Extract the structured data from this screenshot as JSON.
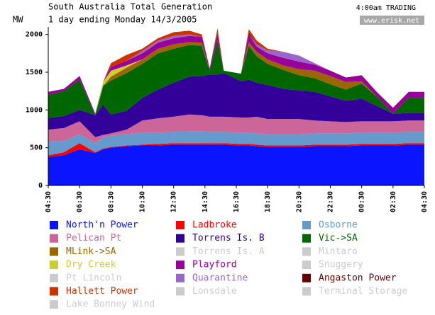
{
  "chart_data": {
    "type": "stacked_area",
    "title": "South Australia Total Generation",
    "subtitle": "1 day ending Monday 14/3/2005",
    "y_label": "MW",
    "status": "4:00am TRADING",
    "source": "www.erisk.net",
    "x": [
      0,
      1,
      2,
      3,
      3.5,
      4,
      5,
      6,
      7,
      8,
      9,
      9.8,
      10.3,
      10.8,
      11.2,
      12.3,
      12.8,
      13.3,
      14,
      15,
      16,
      17,
      18,
      19,
      20,
      21,
      22,
      23,
      24
    ],
    "xlim": [
      0,
      24
    ],
    "xticks": [
      {
        "value": 0,
        "label": "04:30"
      },
      {
        "value": 2,
        "label": "06:30"
      },
      {
        "value": 4,
        "label": "08:30"
      },
      {
        "value": 6,
        "label": "10:30"
      },
      {
        "value": 8,
        "label": "12:30"
      },
      {
        "value": 10,
        "label": "14:30"
      },
      {
        "value": 12,
        "label": "16:30"
      },
      {
        "value": 14,
        "label": "18:30"
      },
      {
        "value": 16,
        "label": "20:30"
      },
      {
        "value": 18,
        "label": "22:30"
      },
      {
        "value": 20,
        "label": "00:30"
      },
      {
        "value": 22,
        "label": "02:30"
      },
      {
        "value": 24,
        "label": "04:30"
      }
    ],
    "ylim": [
      0,
      2100
    ],
    "yticks": [
      0,
      500,
      1000,
      1500,
      2000
    ],
    "series": [
      {
        "name": "North'n Power",
        "color": "#0a14ff",
        "values": [
          380,
          400,
          480,
          430,
          480,
          500,
          520,
          530,
          530,
          540,
          540,
          540,
          540,
          540,
          540,
          530,
          530,
          520,
          510,
          510,
          510,
          520,
          520,
          520,
          530,
          530,
          530,
          540,
          540
        ]
      },
      {
        "name": "Ladbroke",
        "color": "#ff0000",
        "values": [
          20,
          40,
          80,
          10,
          10,
          10,
          10,
          10,
          20,
          20,
          20,
          20,
          20,
          20,
          20,
          20,
          20,
          20,
          20,
          20,
          20,
          20,
          20,
          20,
          20,
          20,
          20,
          20,
          20
        ]
      },
      {
        "name": "Osborne",
        "color": "#6699cc",
        "values": [
          180,
          150,
          120,
          120,
          150,
          150,
          150,
          160,
          150,
          150,
          160,
          160,
          150,
          150,
          150,
          150,
          150,
          150,
          150,
          150,
          150,
          150,
          150,
          150,
          150,
          150,
          150,
          150,
          150
        ]
      },
      {
        "name": "Pelican Pt",
        "color": "#cc6699",
        "values": [
          160,
          170,
          170,
          80,
          30,
          30,
          60,
          160,
          190,
          200,
          220,
          210,
          200,
          200,
          200,
          200,
          200,
          220,
          200,
          200,
          200,
          170,
          160,
          150,
          150,
          150,
          150,
          150,
          150
        ]
      },
      {
        "name": "Torrens Is. B",
        "color": "#330099",
        "values": [
          150,
          160,
          150,
          290,
          400,
          250,
          250,
          300,
          380,
          450,
          500,
          520,
          560,
          560,
          580,
          480,
          500,
          450,
          450,
          400,
          380,
          380,
          330,
          280,
          300,
          200,
          100,
          100,
          100
        ]
      },
      {
        "name": "Vic->SA",
        "color": "#006600",
        "values": [
          310,
          330,
          400,
          0,
          250,
          450,
          500,
          450,
          480,
          450,
          420,
          400,
          50,
          450,
          30,
          100,
          450,
          350,
          280,
          250,
          200,
          180,
          160,
          150,
          200,
          120,
          0,
          200,
          200
        ]
      },
      {
        "name": "MLink->SA",
        "color": "#996600",
        "values": [
          0,
          0,
          0,
          0,
          0,
          50,
          70,
          60,
          60,
          60,
          40,
          40,
          0,
          0,
          0,
          0,
          50,
          60,
          60,
          60,
          80,
          100,
          110,
          100,
          30,
          0,
          0,
          0,
          0
        ]
      },
      {
        "name": "Torrens Is. A",
        "color": "#cccccc",
        "values": [
          0,
          0,
          0,
          0,
          0,
          0,
          0,
          0,
          0,
          0,
          0,
          0,
          0,
          0,
          0,
          0,
          0,
          0,
          0,
          0,
          0,
          0,
          0,
          0,
          0,
          0,
          0,
          0,
          0
        ]
      },
      {
        "name": "Mintaro",
        "color": "#cccccc",
        "values": [
          0,
          0,
          0,
          0,
          0,
          0,
          0,
          0,
          0,
          0,
          0,
          0,
          0,
          0,
          0,
          0,
          0,
          0,
          0,
          0,
          0,
          0,
          0,
          0,
          0,
          0,
          0,
          0,
          0
        ]
      },
      {
        "name": "Dry Creek",
        "color": "#cccc33",
        "values": [
          0,
          0,
          0,
          0,
          50,
          80,
          30,
          0,
          0,
          0,
          0,
          0,
          0,
          0,
          0,
          0,
          0,
          0,
          0,
          0,
          0,
          0,
          0,
          0,
          0,
          0,
          0,
          0,
          0
        ]
      },
      {
        "name": "Playford",
        "color": "#990099",
        "values": [
          40,
          30,
          50,
          20,
          0,
          50,
          60,
          80,
          80,
          80,
          80,
          80,
          30,
          80,
          0,
          0,
          100,
          70,
          80,
          100,
          100,
          80,
          70,
          60,
          80,
          60,
          80,
          80,
          80
        ]
      },
      {
        "name": "Snuggery",
        "color": "#cccccc",
        "values": [
          0,
          0,
          0,
          0,
          0,
          0,
          0,
          0,
          0,
          0,
          0,
          0,
          0,
          0,
          0,
          0,
          0,
          0,
          0,
          0,
          0,
          0,
          0,
          0,
          0,
          0,
          0,
          0,
          0
        ]
      },
      {
        "name": "Pt Lincoln",
        "color": "#cccccc",
        "values": [
          0,
          0,
          0,
          0,
          0,
          0,
          0,
          0,
          0,
          0,
          0,
          0,
          0,
          0,
          0,
          0,
          0,
          0,
          0,
          0,
          0,
          0,
          0,
          0,
          0,
          0,
          0,
          0,
          0
        ]
      },
      {
        "name": "Quarantine",
        "color": "#9966cc",
        "values": [
          0,
          0,
          0,
          0,
          0,
          0,
          0,
          30,
          30,
          30,
          20,
          0,
          0,
          0,
          0,
          0,
          0,
          30,
          40,
          80,
          80,
          20,
          0,
          0,
          0,
          0,
          0,
          0,
          0
        ]
      },
      {
        "name": "Angaston Power",
        "color": "#660000",
        "values": [
          0,
          0,
          0,
          0,
          0,
          0,
          0,
          0,
          0,
          0,
          0,
          0,
          0,
          20,
          0,
          0,
          20,
          0,
          0,
          0,
          0,
          0,
          0,
          0,
          0,
          0,
          0,
          0,
          0
        ]
      },
      {
        "name": "Hallett Power",
        "color": "#cc3300",
        "values": [
          0,
          0,
          0,
          0,
          0,
          50,
          80,
          30,
          30,
          50,
          50,
          30,
          0,
          60,
          0,
          0,
          50,
          50,
          20,
          0,
          0,
          0,
          0,
          0,
          0,
          0,
          0,
          0,
          0
        ]
      },
      {
        "name": "Lonsdale",
        "color": "#cccccc",
        "values": [
          0,
          0,
          0,
          0,
          0,
          0,
          0,
          0,
          0,
          0,
          0,
          0,
          0,
          0,
          0,
          0,
          0,
          0,
          0,
          0,
          0,
          0,
          0,
          0,
          0,
          0,
          0,
          0,
          0
        ]
      },
      {
        "name": "Terminal Storage",
        "color": "#cccccc",
        "values": [
          0,
          0,
          0,
          0,
          0,
          0,
          0,
          0,
          0,
          0,
          0,
          0,
          0,
          0,
          0,
          0,
          0,
          0,
          0,
          0,
          0,
          0,
          0,
          0,
          0,
          0,
          0,
          0,
          0
        ]
      },
      {
        "name": "Lake Bonney Wind",
        "color": "#cccccc",
        "values": [
          0,
          0,
          0,
          0,
          0,
          0,
          0,
          0,
          0,
          0,
          0,
          0,
          0,
          0,
          0,
          0,
          0,
          0,
          0,
          0,
          0,
          0,
          0,
          0,
          0,
          0,
          0,
          0,
          0
        ]
      }
    ]
  }
}
